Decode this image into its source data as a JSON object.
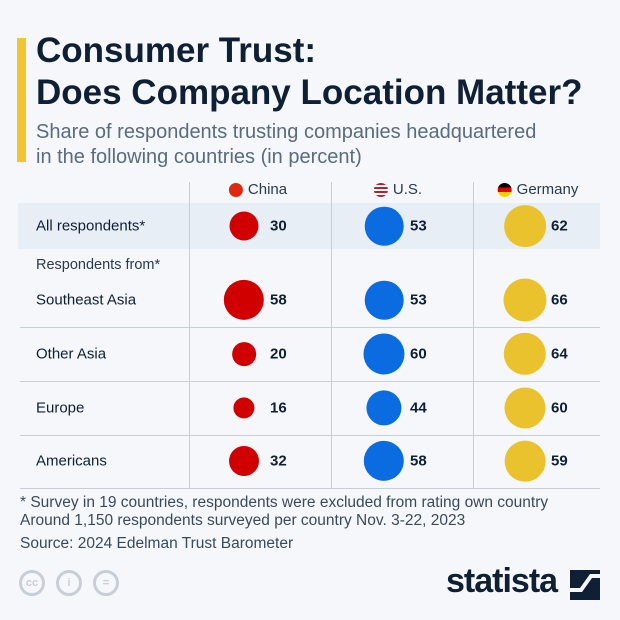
{
  "title_lines": [
    "Consumer Trust:",
    "Does Company Location Matter?"
  ],
  "subtitle_lines": [
    "Share of respondents trusting companies headquartered",
    "in the following countries (in percent)"
  ],
  "chart_data": {
    "type": "bubble-table",
    "columns": [
      {
        "name": "China",
        "color": "#d00000",
        "flag": "china-flag"
      },
      {
        "name": "U.S.",
        "color": "#0b6be0",
        "flag": "us-flag"
      },
      {
        "name": "Germany",
        "color": "#eac22e",
        "flag": "germany-flag"
      }
    ],
    "group_label": "Respondents from*",
    "rows": [
      {
        "label": "All respondents*",
        "values": [
          30,
          53,
          62
        ]
      },
      {
        "label": "Southeast Asia",
        "values": [
          58,
          53,
          66
        ]
      },
      {
        "label": "Other Asia",
        "values": [
          20,
          60,
          64
        ]
      },
      {
        "label": "Europe",
        "values": [
          16,
          44,
          60
        ]
      },
      {
        "label": "Americans",
        "values": [
          32,
          58,
          59
        ]
      }
    ]
  },
  "footnotes": [
    "* Survey in 19 countries, respondents were excluded from rating own country",
    "Around 1,150 respondents surveyed per country Nov. 3-22, 2023",
    "Source: 2024 Edelman Trust Barometer"
  ],
  "brand": "statista",
  "license_icons": [
    "cc",
    "by",
    "nd"
  ]
}
